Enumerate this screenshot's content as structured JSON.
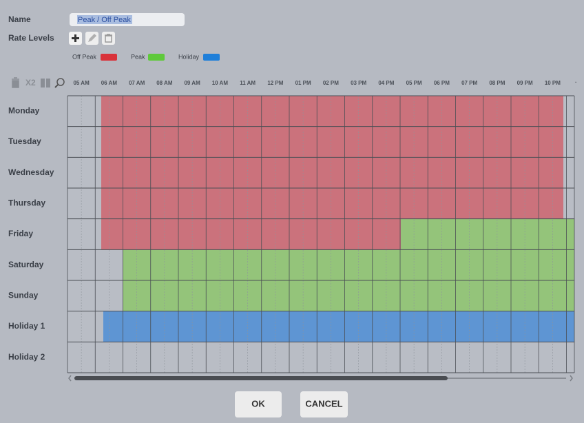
{
  "name": {
    "label": "Name",
    "value": "Peak / Off Peak"
  },
  "rate_levels": {
    "label": "Rate Levels"
  },
  "legend": [
    {
      "label": "Off Peak"
    },
    {
      "label": "Peak"
    },
    {
      "label": "Holiday"
    }
  ],
  "toolbar": {
    "zoom": "X2"
  },
  "time_labels": [
    "05 AM",
    "06 AM",
    "07 AM",
    "08 AM",
    "09 AM",
    "10 AM",
    "11 AM",
    "12 PM",
    "01 PM",
    "02 PM",
    "03 PM",
    "04 PM",
    "05 PM",
    "06 PM",
    "07 PM",
    "08 PM",
    "09 PM",
    "10 PM"
  ],
  "days": [
    "Monday",
    "Tuesday",
    "Wednesday",
    "Thursday",
    "Friday",
    "Saturday",
    "Sunday",
    "Holiday 1",
    "Holiday 2"
  ],
  "buttons": [
    "OK",
    "CANCEL"
  ]
}
